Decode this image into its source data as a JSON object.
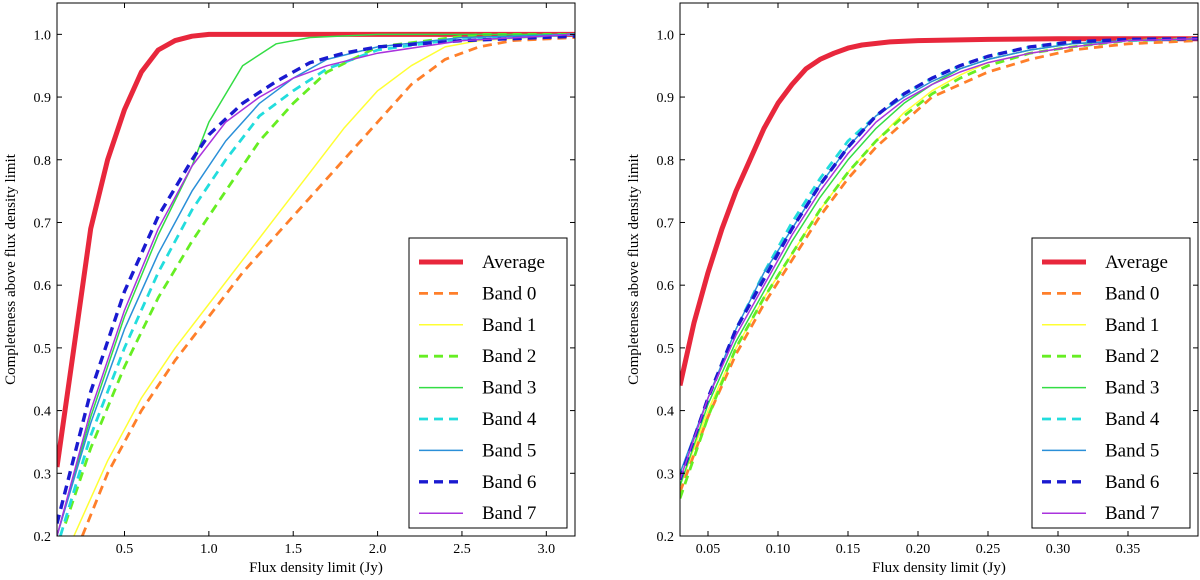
{
  "chart_data": [
    {
      "type": "line",
      "xlabel": "Flux density limit (Jy)",
      "ylabel": "Completeness above flux density limit",
      "xlim": [
        0.1,
        3.17
      ],
      "ylim": [
        0.2,
        1.05
      ],
      "xticks": [
        0.5,
        1.0,
        1.5,
        2.0,
        2.5,
        3.0
      ],
      "xtick_labels": [
        "0.5",
        "1.0",
        "1.5",
        "2.0",
        "2.5",
        "3.0"
      ],
      "yticks": [
        0.2,
        0.3,
        0.4,
        0.5,
        0.6,
        0.7,
        0.8,
        0.9,
        1.0
      ],
      "ytick_labels": [
        "0.2",
        "0.3",
        "0.4",
        "0.5",
        "0.6",
        "0.7",
        "0.8",
        "0.9",
        "1.0"
      ],
      "legend_position": "lower-right",
      "series": [
        {
          "name": "Average",
          "color": "#e8273c",
          "style": "solid",
          "weight": "thick",
          "x": [
            0.1,
            0.2,
            0.3,
            0.4,
            0.5,
            0.6,
            0.7,
            0.8,
            0.9,
            1.0,
            1.2,
            1.5,
            2.0,
            2.5,
            3.17
          ],
          "y": [
            0.31,
            0.5,
            0.69,
            0.8,
            0.88,
            0.94,
            0.975,
            0.99,
            0.997,
            1.0,
            1.0,
            1.0,
            1.0,
            1.0,
            1.0
          ]
        },
        {
          "name": "Band 0",
          "color": "#ff7f2a",
          "style": "dashed",
          "weight": "normal",
          "x": [
            0.25,
            0.4,
            0.6,
            0.8,
            1.0,
            1.2,
            1.4,
            1.6,
            1.8,
            2.0,
            2.2,
            2.4,
            2.6,
            2.8,
            3.17
          ],
          "y": [
            0.2,
            0.3,
            0.4,
            0.48,
            0.55,
            0.62,
            0.68,
            0.74,
            0.8,
            0.86,
            0.92,
            0.96,
            0.98,
            0.99,
            0.995
          ]
        },
        {
          "name": "Band 1",
          "color": "#ffff33",
          "style": "solid",
          "weight": "normal",
          "x": [
            0.2,
            0.4,
            0.6,
            0.8,
            1.0,
            1.2,
            1.4,
            1.6,
            1.8,
            2.0,
            2.2,
            2.4,
            2.6,
            3.17
          ],
          "y": [
            0.2,
            0.32,
            0.42,
            0.5,
            0.57,
            0.64,
            0.71,
            0.78,
            0.85,
            0.91,
            0.95,
            0.98,
            0.99,
            1.0
          ]
        },
        {
          "name": "Band 2",
          "color": "#66ee22",
          "style": "dashed",
          "weight": "normal",
          "x": [
            0.15,
            0.3,
            0.5,
            0.7,
            0.9,
            1.1,
            1.3,
            1.5,
            1.7,
            2.0,
            2.3,
            2.6,
            3.17
          ],
          "y": [
            0.22,
            0.34,
            0.47,
            0.58,
            0.67,
            0.75,
            0.83,
            0.89,
            0.94,
            0.98,
            0.99,
            1.0,
            1.0
          ]
        },
        {
          "name": "Band 3",
          "color": "#33dd44",
          "style": "solid",
          "weight": "normal",
          "x": [
            0.1,
            0.3,
            0.5,
            0.7,
            0.9,
            1.0,
            1.2,
            1.4,
            1.6,
            2.0,
            3.17
          ],
          "y": [
            0.2,
            0.39,
            0.55,
            0.68,
            0.79,
            0.86,
            0.95,
            0.985,
            0.995,
            1.0,
            1.0
          ]
        },
        {
          "name": "Band 4",
          "color": "#22dddd",
          "style": "dashed",
          "weight": "normal",
          "x": [
            0.12,
            0.3,
            0.5,
            0.7,
            0.9,
            1.1,
            1.3,
            1.5,
            1.7,
            2.0,
            2.4,
            3.17
          ],
          "y": [
            0.2,
            0.36,
            0.5,
            0.62,
            0.72,
            0.8,
            0.87,
            0.91,
            0.945,
            0.975,
            0.99,
            1.0
          ]
        },
        {
          "name": "Band 5",
          "color": "#2a8fd8",
          "style": "solid",
          "weight": "normal",
          "x": [
            0.1,
            0.3,
            0.5,
            0.7,
            0.9,
            1.1,
            1.3,
            1.5,
            1.7,
            2.0,
            2.5,
            3.17
          ],
          "y": [
            0.2,
            0.38,
            0.53,
            0.65,
            0.75,
            0.83,
            0.89,
            0.93,
            0.96,
            0.98,
            0.995,
            1.0
          ]
        },
        {
          "name": "Band 6",
          "color": "#1a1ad0",
          "style": "dashed",
          "weight": "thick",
          "x": [
            0.1,
            0.3,
            0.5,
            0.7,
            0.9,
            1.0,
            1.2,
            1.4,
            1.6,
            1.8,
            2.0,
            2.5,
            3.17
          ],
          "y": [
            0.22,
            0.43,
            0.59,
            0.71,
            0.8,
            0.84,
            0.89,
            0.925,
            0.955,
            0.97,
            0.98,
            0.99,
            0.997
          ]
        },
        {
          "name": "Band 7",
          "color": "#aa33dd",
          "style": "solid",
          "weight": "normal",
          "x": [
            0.1,
            0.3,
            0.5,
            0.7,
            0.9,
            1.1,
            1.3,
            1.5,
            1.7,
            2.0,
            2.5,
            3.17
          ],
          "y": [
            0.2,
            0.4,
            0.56,
            0.69,
            0.79,
            0.86,
            0.9,
            0.93,
            0.95,
            0.97,
            0.99,
            1.0
          ]
        }
      ]
    },
    {
      "type": "line",
      "xlabel": "Flux density limit (Jy)",
      "ylabel": "Completeness above flux density limit",
      "xlim": [
        0.03,
        0.4
      ],
      "ylim": [
        0.2,
        1.05
      ],
      "xticks": [
        0.05,
        0.1,
        0.15,
        0.2,
        0.25,
        0.3,
        0.35
      ],
      "xtick_labels": [
        "0.05",
        "0.10",
        "0.15",
        "0.20",
        "0.25",
        "0.30",
        "0.35"
      ],
      "yticks": [
        0.2,
        0.3,
        0.4,
        0.5,
        0.6,
        0.7,
        0.8,
        0.9,
        1.0
      ],
      "ytick_labels": [
        "0.2",
        "0.3",
        "0.4",
        "0.5",
        "0.6",
        "0.7",
        "0.8",
        "0.9",
        "1.0"
      ],
      "legend_position": "lower-right",
      "series": [
        {
          "name": "Average",
          "color": "#e8273c",
          "style": "solid",
          "weight": "thick",
          "x": [
            0.03,
            0.04,
            0.05,
            0.06,
            0.07,
            0.08,
            0.09,
            0.1,
            0.11,
            0.12,
            0.13,
            0.14,
            0.15,
            0.16,
            0.18,
            0.2,
            0.25,
            0.3,
            0.4
          ],
          "y": [
            0.44,
            0.54,
            0.62,
            0.69,
            0.75,
            0.8,
            0.85,
            0.89,
            0.92,
            0.945,
            0.96,
            0.97,
            0.978,
            0.983,
            0.988,
            0.99,
            0.992,
            0.993,
            0.993
          ]
        },
        {
          "name": "Band 0",
          "color": "#ff7f2a",
          "style": "dashed",
          "weight": "normal",
          "x": [
            0.03,
            0.05,
            0.07,
            0.09,
            0.11,
            0.13,
            0.15,
            0.17,
            0.19,
            0.21,
            0.23,
            0.25,
            0.28,
            0.31,
            0.35,
            0.4
          ],
          "y": [
            0.27,
            0.39,
            0.49,
            0.57,
            0.64,
            0.71,
            0.77,
            0.82,
            0.86,
            0.9,
            0.92,
            0.94,
            0.96,
            0.975,
            0.985,
            0.99
          ]
        },
        {
          "name": "Band 1",
          "color": "#ffff33",
          "style": "solid",
          "weight": "normal",
          "x": [
            0.03,
            0.05,
            0.07,
            0.09,
            0.11,
            0.13,
            0.15,
            0.17,
            0.19,
            0.21,
            0.23,
            0.25,
            0.28,
            0.31,
            0.35,
            0.4
          ],
          "y": [
            0.28,
            0.4,
            0.5,
            0.58,
            0.65,
            0.72,
            0.78,
            0.83,
            0.875,
            0.91,
            0.935,
            0.955,
            0.97,
            0.98,
            0.99,
            0.993
          ]
        },
        {
          "name": "Band 2",
          "color": "#66ee22",
          "style": "dashed",
          "weight": "normal",
          "x": [
            0.03,
            0.05,
            0.07,
            0.09,
            0.11,
            0.13,
            0.15,
            0.17,
            0.19,
            0.21,
            0.23,
            0.25,
            0.28,
            0.31,
            0.35,
            0.4
          ],
          "y": [
            0.26,
            0.39,
            0.5,
            0.58,
            0.65,
            0.72,
            0.78,
            0.83,
            0.87,
            0.905,
            0.93,
            0.95,
            0.97,
            0.98,
            0.99,
            0.993
          ]
        },
        {
          "name": "Band 3",
          "color": "#33dd44",
          "style": "solid",
          "weight": "normal",
          "x": [
            0.03,
            0.05,
            0.07,
            0.09,
            0.11,
            0.13,
            0.15,
            0.17,
            0.19,
            0.21,
            0.23,
            0.25,
            0.28,
            0.31,
            0.35,
            0.4
          ],
          "y": [
            0.28,
            0.41,
            0.51,
            0.59,
            0.67,
            0.74,
            0.8,
            0.85,
            0.89,
            0.92,
            0.945,
            0.96,
            0.975,
            0.985,
            0.99,
            0.993
          ]
        },
        {
          "name": "Band 4",
          "color": "#22dddd",
          "style": "dashed",
          "weight": "normal",
          "x": [
            0.03,
            0.05,
            0.07,
            0.09,
            0.11,
            0.13,
            0.15,
            0.17,
            0.19,
            0.21,
            0.23,
            0.25,
            0.28,
            0.31,
            0.35,
            0.4
          ],
          "y": [
            0.29,
            0.42,
            0.53,
            0.62,
            0.7,
            0.77,
            0.83,
            0.87,
            0.905,
            0.93,
            0.95,
            0.965,
            0.98,
            0.988,
            0.99,
            0.993
          ]
        },
        {
          "name": "Band 5",
          "color": "#2a8fd8",
          "style": "solid",
          "weight": "normal",
          "x": [
            0.03,
            0.05,
            0.07,
            0.09,
            0.11,
            0.13,
            0.15,
            0.17,
            0.19,
            0.21,
            0.23,
            0.25,
            0.28,
            0.31,
            0.35,
            0.4
          ],
          "y": [
            0.3,
            0.42,
            0.53,
            0.62,
            0.69,
            0.76,
            0.82,
            0.87,
            0.9,
            0.925,
            0.945,
            0.96,
            0.975,
            0.985,
            0.99,
            0.993
          ]
        },
        {
          "name": "Band 6",
          "color": "#1a1ad0",
          "style": "dashed",
          "weight": "thick",
          "x": [
            0.03,
            0.05,
            0.07,
            0.09,
            0.11,
            0.13,
            0.15,
            0.17,
            0.19,
            0.21,
            0.23,
            0.25,
            0.28,
            0.31,
            0.35,
            0.4
          ],
          "y": [
            0.29,
            0.42,
            0.53,
            0.61,
            0.69,
            0.76,
            0.82,
            0.87,
            0.905,
            0.93,
            0.95,
            0.965,
            0.98,
            0.988,
            0.992,
            0.993
          ]
        },
        {
          "name": "Band 7",
          "color": "#aa33dd",
          "style": "solid",
          "weight": "normal",
          "x": [
            0.03,
            0.05,
            0.07,
            0.09,
            0.11,
            0.13,
            0.15,
            0.17,
            0.19,
            0.21,
            0.23,
            0.25,
            0.28,
            0.31,
            0.35,
            0.4
          ],
          "y": [
            0.29,
            0.42,
            0.52,
            0.6,
            0.68,
            0.75,
            0.81,
            0.86,
            0.895,
            0.92,
            0.94,
            0.955,
            0.97,
            0.98,
            0.99,
            0.993
          ]
        }
      ]
    }
  ]
}
